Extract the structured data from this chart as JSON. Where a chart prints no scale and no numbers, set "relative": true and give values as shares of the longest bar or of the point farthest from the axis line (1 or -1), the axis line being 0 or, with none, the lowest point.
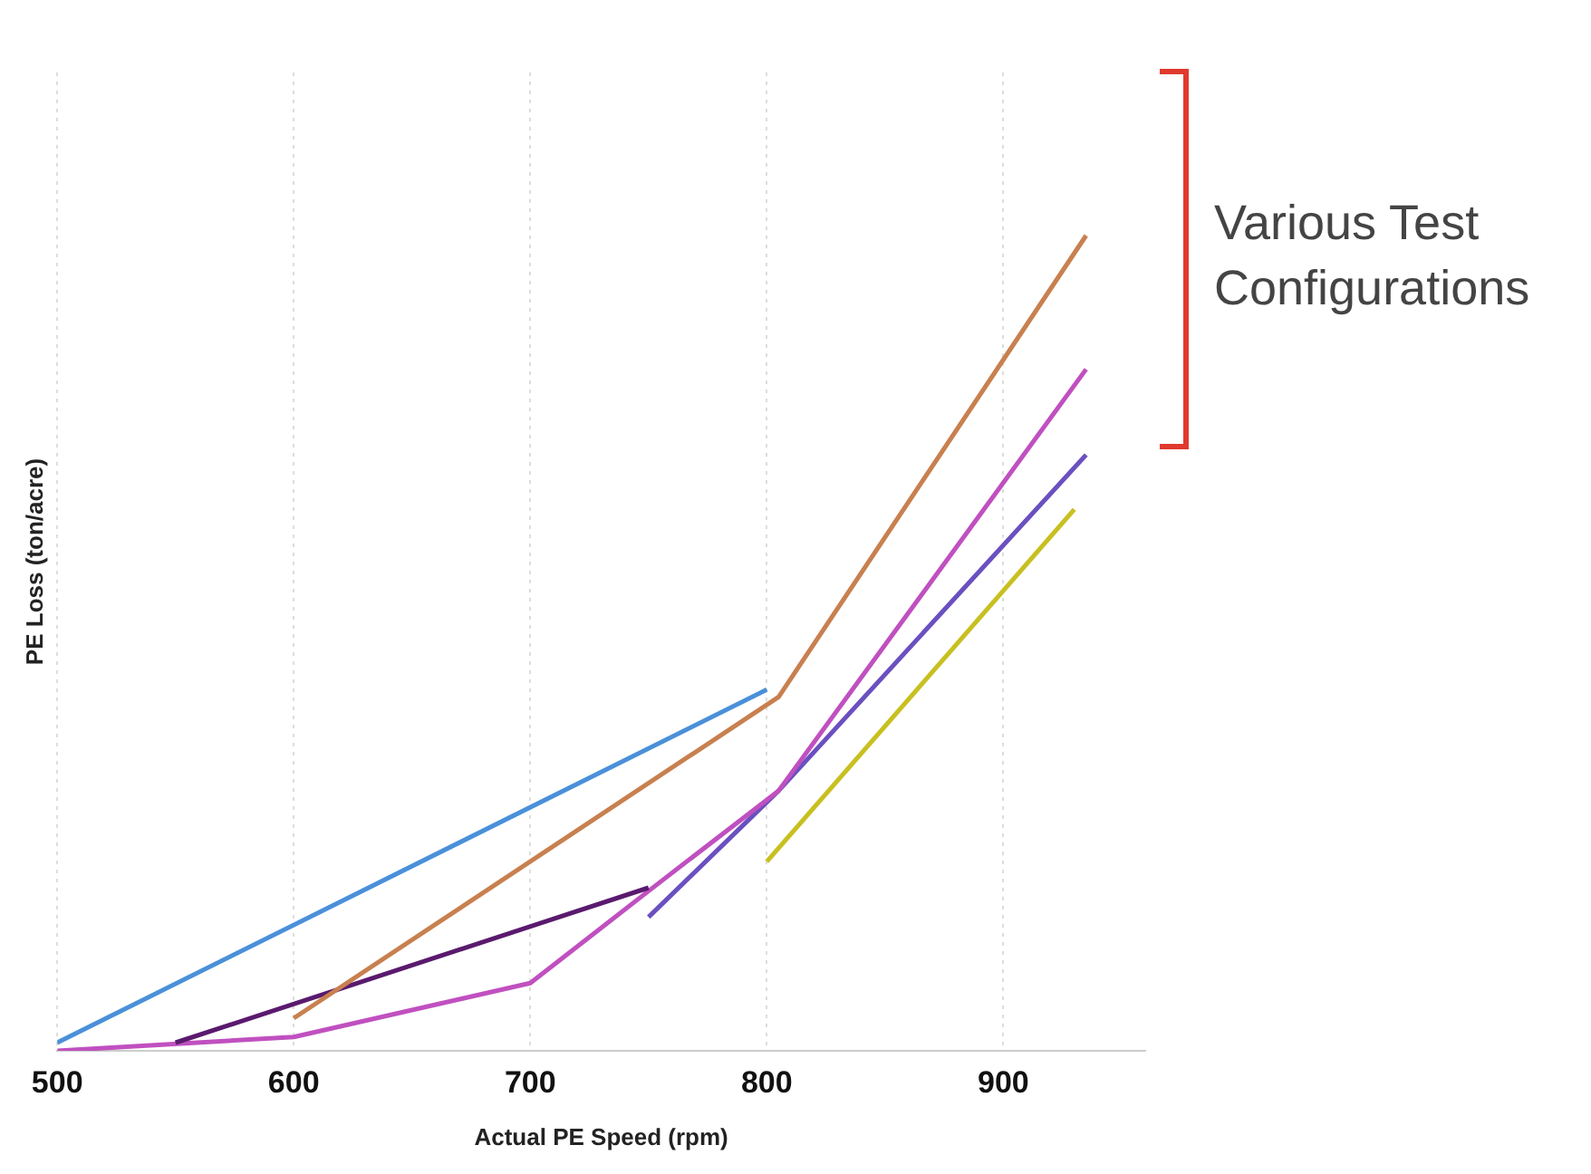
{
  "chart_data": {
    "type": "line",
    "xlabel": "Actual PE Speed (rpm)",
    "ylabel": "PE Loss (ton/acre)",
    "relative": true,
    "xlim": [
      500,
      960
    ],
    "xticks": [
      500,
      600,
      700,
      800,
      900
    ],
    "grid": "x",
    "legend": false,
    "marker": "none",
    "line_style": "solid",
    "annotations": [
      "Various Test Configurations"
    ],
    "series": [
      {
        "color": "#4a90d9",
        "x": [
          500,
          800
        ],
        "values": [
          0.01,
          0.443
        ]
      },
      {
        "color": "#c8804f",
        "x": [
          600,
          805,
          935
        ],
        "values": [
          0.04,
          0.434,
          1
        ]
      },
      {
        "color": "#5a1a6e",
        "x": [
          550,
          750
        ],
        "values": [
          0.01,
          0.2
        ]
      },
      {
        "color": "#c050c0",
        "x": [
          500,
          600,
          700,
          750,
          805,
          935
        ],
        "values": [
          0,
          0.017,
          0.083,
          0.196,
          0.319,
          0.836
        ]
      },
      {
        "color": "#6a50c0",
        "x": [
          750,
          805,
          935
        ],
        "values": [
          0.164,
          0.319,
          0.731
        ]
      },
      {
        "color": "#c8c020",
        "x": [
          800,
          930
        ],
        "values": [
          0.232,
          0.664
        ]
      }
    ]
  }
}
